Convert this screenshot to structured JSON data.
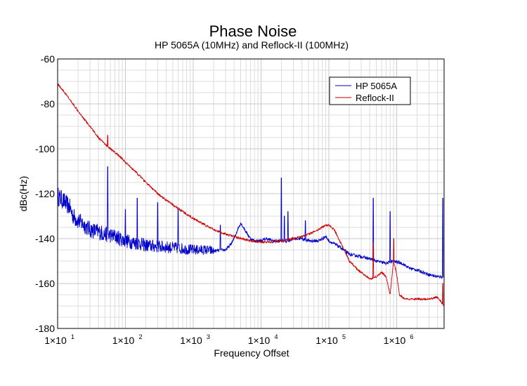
{
  "chart_data": {
    "type": "line",
    "title": "Phase Noise",
    "subtitle": "HP 5065A (10MHz) and Reflock-II (100MHz)",
    "xlabel": "Frequency Offset",
    "ylabel": "dBc(Hz)",
    "xscale": "log",
    "xlim": [
      10,
      5000000
    ],
    "ylim": [
      -180,
      -60
    ],
    "yticks": [
      -60,
      -80,
      -100,
      -120,
      -140,
      -160,
      -180
    ],
    "xticks": [
      {
        "base": "1×10",
        "exp": "1"
      },
      {
        "base": "1×10",
        "exp": "2"
      },
      {
        "base": "1×10",
        "exp": "3"
      },
      {
        "base": "1×10",
        "exp": "4"
      },
      {
        "base": "1×10",
        "exp": "5"
      },
      {
        "base": "1×10",
        "exp": "6"
      }
    ],
    "grid": true,
    "legend_position": "top-right",
    "series": [
      {
        "name": "HP 5065A",
        "color": "#0000cc",
        "points": [
          [
            10,
            -121
          ],
          [
            12,
            -123
          ],
          [
            15,
            -126
          ],
          [
            17,
            -130
          ],
          [
            20,
            -132
          ],
          [
            25,
            -134
          ],
          [
            30,
            -136
          ],
          [
            40,
            -137
          ],
          [
            50,
            -138
          ],
          [
            70,
            -139
          ],
          [
            100,
            -141
          ],
          [
            150,
            -142
          ],
          [
            200,
            -143
          ],
          [
            300,
            -143.5
          ],
          [
            500,
            -144
          ],
          [
            700,
            -144.5
          ],
          [
            1000,
            -145
          ],
          [
            1500,
            -145
          ],
          [
            2000,
            -145.5
          ],
          [
            3000,
            -145
          ],
          [
            3500,
            -143
          ],
          [
            4000,
            -140
          ],
          [
            4500,
            -136
          ],
          [
            5000,
            -133
          ],
          [
            5500,
            -135
          ],
          [
            6000,
            -137
          ],
          [
            7000,
            -140
          ],
          [
            8000,
            -141
          ],
          [
            10000,
            -141
          ],
          [
            12000,
            -140
          ],
          [
            15000,
            -141
          ],
          [
            20000,
            -141
          ],
          [
            25000,
            -141
          ],
          [
            30000,
            -140
          ],
          [
            40000,
            -140
          ],
          [
            50000,
            -141
          ],
          [
            60000,
            -141
          ],
          [
            70000,
            -141
          ],
          [
            80000,
            -140
          ],
          [
            90000,
            -139
          ],
          [
            100000,
            -141
          ],
          [
            150000,
            -144
          ],
          [
            200000,
            -147
          ],
          [
            300000,
            -148
          ],
          [
            400000,
            -149
          ],
          [
            500000,
            -150
          ],
          [
            700000,
            -151
          ],
          [
            900000,
            -150
          ],
          [
            1200000,
            -151
          ],
          [
            1500000,
            -153
          ],
          [
            2000000,
            -154
          ],
          [
            3000000,
            -156
          ],
          [
            4000000,
            -157
          ],
          [
            5000000,
            -157
          ]
        ],
        "spurs": [
          [
            55,
            -108
          ],
          [
            100,
            -127
          ],
          [
            150,
            -122
          ],
          [
            300,
            -124
          ],
          [
            600,
            -127
          ],
          [
            2500,
            -134
          ],
          [
            20000,
            -113
          ],
          [
            22000,
            -130
          ],
          [
            25000,
            -128
          ],
          [
            45000,
            -132
          ],
          [
            450000,
            -122
          ],
          [
            800000,
            -128
          ],
          [
            4800000,
            -122
          ]
        ]
      },
      {
        "name": "Reflock-II",
        "color": "#cc0000",
        "points": [
          [
            10,
            -71
          ],
          [
            12,
            -74
          ],
          [
            15,
            -78
          ],
          [
            20,
            -83
          ],
          [
            25,
            -87
          ],
          [
            30,
            -90
          ],
          [
            40,
            -95
          ],
          [
            50,
            -98
          ],
          [
            60,
            -100
          ],
          [
            80,
            -103
          ],
          [
            100,
            -106
          ],
          [
            150,
            -111
          ],
          [
            200,
            -115
          ],
          [
            300,
            -120
          ],
          [
            500,
            -125
          ],
          [
            700,
            -128
          ],
          [
            1000,
            -131
          ],
          [
            1500,
            -134
          ],
          [
            2000,
            -136
          ],
          [
            3000,
            -138
          ],
          [
            4000,
            -139
          ],
          [
            5000,
            -140
          ],
          [
            7000,
            -141
          ],
          [
            10000,
            -141.5
          ],
          [
            15000,
            -141.5
          ],
          [
            20000,
            -141
          ],
          [
            30000,
            -140
          ],
          [
            40000,
            -139
          ],
          [
            50000,
            -138
          ],
          [
            70000,
            -136
          ],
          [
            90000,
            -134
          ],
          [
            100000,
            -134
          ],
          [
            120000,
            -136
          ],
          [
            150000,
            -142
          ],
          [
            200000,
            -150
          ],
          [
            250000,
            -153
          ],
          [
            300000,
            -155
          ],
          [
            400000,
            -158
          ],
          [
            500000,
            -157
          ],
          [
            600000,
            -155
          ],
          [
            700000,
            -157
          ],
          [
            800000,
            -165
          ],
          [
            900000,
            -150
          ],
          [
            1000000,
            -156
          ],
          [
            1100000,
            -165
          ],
          [
            1300000,
            -167
          ],
          [
            2000000,
            -167
          ],
          [
            3000000,
            -167
          ],
          [
            4000000,
            -166
          ],
          [
            4500000,
            -168
          ],
          [
            5000000,
            -170
          ]
        ],
        "spurs": [
          [
            55,
            -94
          ],
          [
            450000,
            -142
          ],
          [
            900000,
            -140
          ],
          [
            4800000,
            -160
          ]
        ]
      }
    ]
  }
}
